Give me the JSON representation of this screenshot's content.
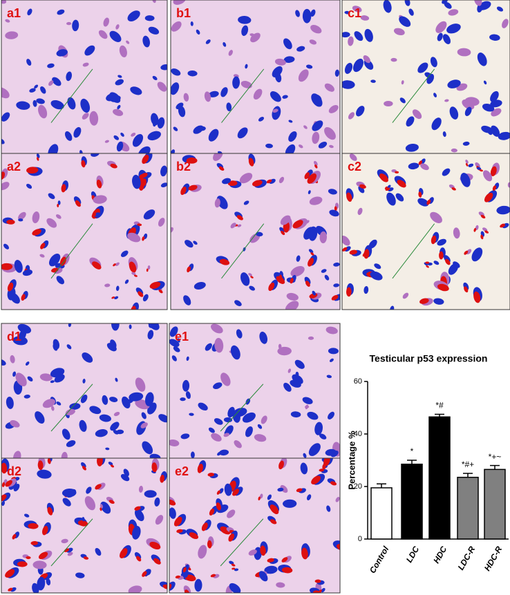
{
  "panels": [
    {
      "label": "a1"
    },
    {
      "label": "b1"
    },
    {
      "label": "c1"
    },
    {
      "label": "a2"
    },
    {
      "label": "b2"
    },
    {
      "label": "c2"
    },
    {
      "label": "d1"
    },
    {
      "label": "e1"
    },
    {
      "label": "d2"
    },
    {
      "label": "e2"
    }
  ],
  "chart_data": {
    "type": "bar",
    "title": "Testicular p53 expression",
    "ylabel": "Percentage %",
    "categories": [
      "Control",
      "LDC",
      "HDC",
      "LDC-R",
      "HDC-R"
    ],
    "values": [
      19.5,
      28.5,
      46.5,
      23.5,
      26.5
    ],
    "errors": [
      1.5,
      1.5,
      1,
      1.5,
      1.5
    ],
    "annotations": [
      null,
      "*",
      "*#",
      "*#+",
      "*+~"
    ],
    "colors": [
      "#ffffff",
      "#000000",
      "#000000",
      "#808080",
      "#808080"
    ],
    "ylim": [
      0,
      60
    ],
    "yticks": [
      0,
      20,
      40,
      60
    ]
  }
}
